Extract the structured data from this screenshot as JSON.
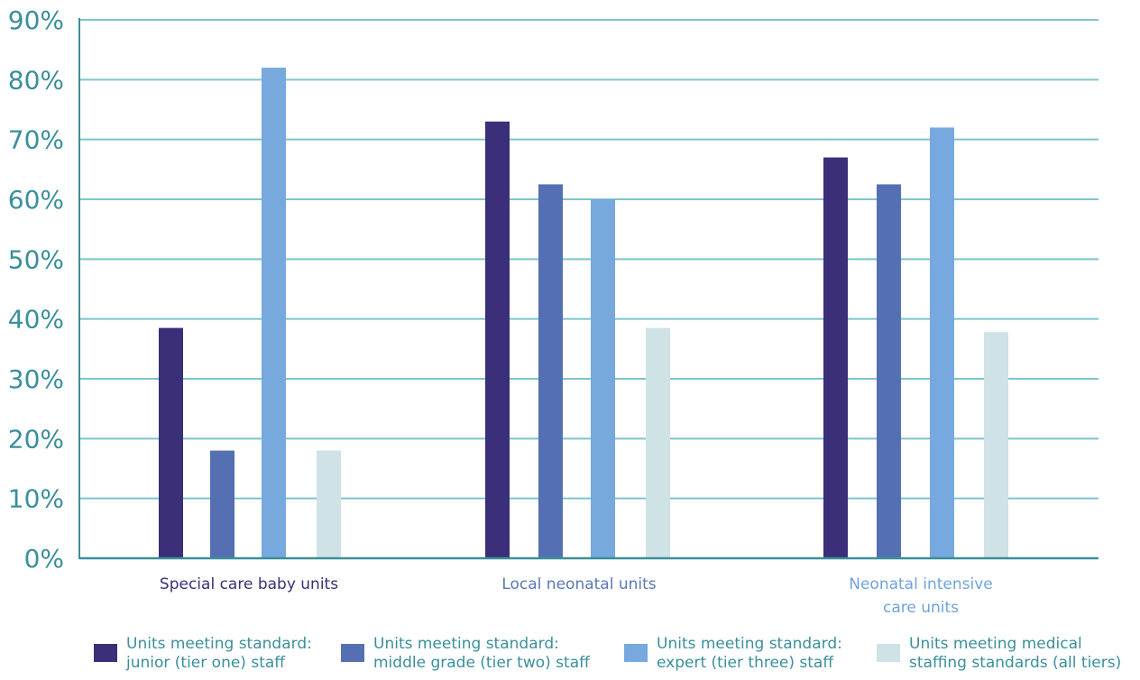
{
  "chart_data": {
    "type": "bar",
    "title": "",
    "xlabel": "",
    "ylabel": "",
    "ylim": [
      0,
      90
    ],
    "yticks": [
      "0%",
      "10%",
      "20%",
      "30%",
      "40%",
      "50%",
      "60%",
      "70%",
      "80%",
      "90%"
    ],
    "grid": true,
    "legend_position": "bottom",
    "categories": [
      "Special care baby units",
      "Local neonatal units",
      "Neonatal intensive\ncare units"
    ],
    "category_colors": [
      "#3b2e7a",
      "#5a78b6",
      "#6fa3dc"
    ],
    "series": [
      {
        "name": "Units meeting standard:\njunior (tier one) staff",
        "color": "#3a2f78",
        "values": [
          38.5,
          73,
          67
        ]
      },
      {
        "name": "Units meeting standard:\nmiddle grade (tier two) staff",
        "color": "#5470b2",
        "values": [
          18,
          62.5,
          62.5
        ]
      },
      {
        "name": "Units meeting standard:\nexpert (tier three) staff",
        "color": "#77a8de",
        "values": [
          82,
          60,
          72
        ]
      },
      {
        "name": "Units meeting medical\nstaffing standards (all tiers)",
        "color": "#cfe2e6",
        "values": [
          18,
          38.5,
          37.8
        ]
      }
    ],
    "colors": {
      "axis": "#3a8f9a",
      "grid": "#7cc5cc"
    }
  }
}
